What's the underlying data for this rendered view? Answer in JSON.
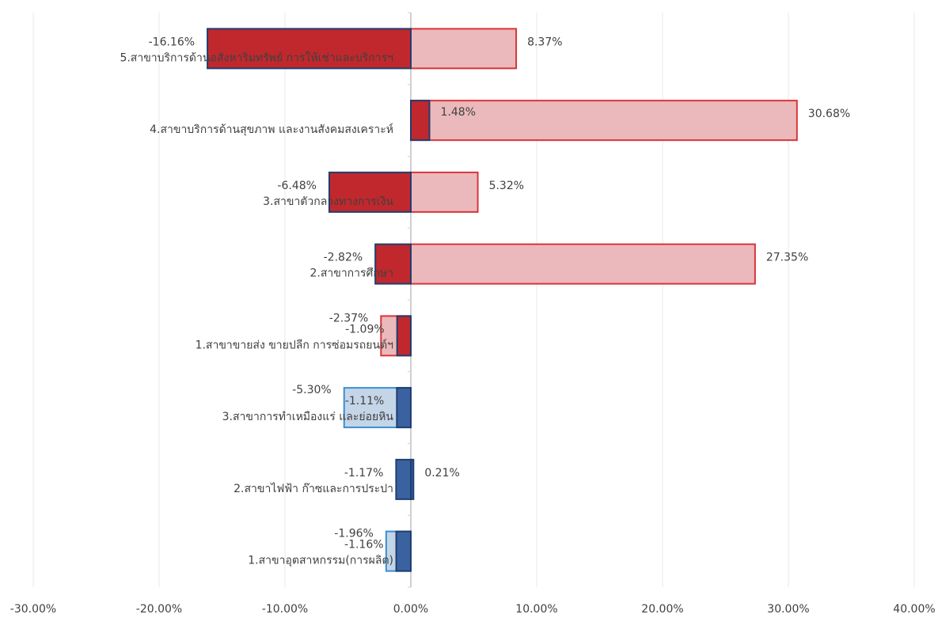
{
  "chart_data": {
    "type": "bar",
    "orientation": "horizontal",
    "categories": [
      "5.สาขาบริการด้านอสังหาริมทรัพย์ การให้เช่าและบริการฯ",
      "4.สาขาบริการด้านสุขภาพ และงานสังคมสงเคราะห์",
      "3.สาขาตัวกลางทางการเงิน",
      "2.สาขาการศึกษา",
      "1.สาขาขายส่ง ขายปลีก การซ่อมรถยนต์ฯ",
      "3.สาขาการทำเหมืองแร่ และย่อยหิน",
      "2.สาขาไฟฟ้า ก๊าซและการประปา",
      "1.สาขาอุตสาหกรรม(การผลิต)"
    ],
    "series": [
      {
        "values": [
          8.37,
          30.68,
          5.32,
          27.35,
          -2.37,
          -5.3,
          0.21,
          -1.96
        ],
        "value_labels": [
          "8.37%",
          "30.68%",
          "5.32%",
          "27.35%",
          "-2.37%",
          "-5.30%",
          "0.21%",
          "-1.96%"
        ],
        "colors": [
          "#ebb9bb",
          "#ebb9bb",
          "#ebb9bb",
          "#ebb9bb",
          "#ebb9bb",
          "#c5d5e8",
          "#2f5e9e",
          "#c5d5e8"
        ]
      },
      {
        "values": [
          -16.16,
          1.48,
          -6.48,
          -2.82,
          -1.09,
          -1.11,
          -1.17,
          -1.16
        ],
        "value_labels": [
          "-16.16%",
          "1.48%",
          "-6.48%",
          "-2.82%",
          "-1.09%",
          "-1.11%",
          "-1.17%",
          "-1.16%"
        ],
        "colors": [
          "#c0282d",
          "#c0282d",
          "#c0282d",
          "#c0282d",
          "#c0282d",
          "#3b62a0",
          "#3b62a0",
          "#3b62a0"
        ]
      }
    ],
    "xlim": [
      -30,
      40
    ],
    "xticks": [
      {
        "value": -30,
        "label": "-30.00%"
      },
      {
        "value": -20,
        "label": "-20.00%"
      },
      {
        "value": -10,
        "label": "-10.00%"
      },
      {
        "value": 0,
        "label": "0.00%"
      },
      {
        "value": 10,
        "label": "10.00%"
      },
      {
        "value": 20,
        "label": "20.00%"
      },
      {
        "value": 30,
        "label": "30.00%"
      },
      {
        "value": 40,
        "label": "40.00%"
      }
    ],
    "grid": true
  }
}
